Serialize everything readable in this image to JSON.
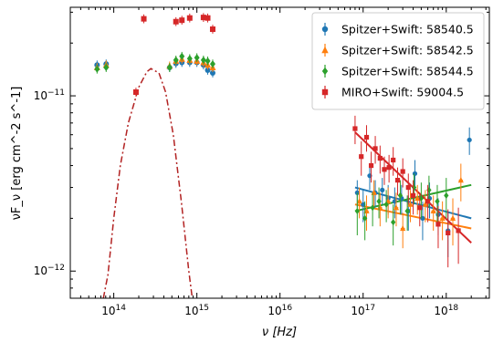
{
  "chart_data": {
    "type": "scatter",
    "xlabel": "ν [Hz]",
    "ylabel": "νF_ν [erg cm^-2 s^-1]",
    "x_scale": "log",
    "y_scale": "log",
    "xlim": [
      30000000000000.0,
      3.3e+18
    ],
    "ylim": [
      7e-13,
      3.2e-11
    ],
    "grid": false,
    "legend_placement": "top-right",
    "x_ticks": [
      {
        "value": 100000000000000.0,
        "base": "10",
        "exp": "14"
      },
      {
        "value": 1000000000000000.0,
        "base": "10",
        "exp": "15"
      },
      {
        "value": 1e+16,
        "base": "10",
        "exp": "16"
      },
      {
        "value": 1e+17,
        "base": "10",
        "exp": "17"
      },
      {
        "value": 1e+18,
        "base": "10",
        "exp": "18"
      }
    ],
    "y_ticks": [
      {
        "value": 1e-12,
        "base": "10",
        "exp": "−12"
      },
      {
        "value": 1e-11,
        "base": "10",
        "exp": "−11"
      }
    ],
    "series": [
      {
        "name": "Spitzer+Swift:  58540.5",
        "color": "#1f77b4",
        "marker": "circle",
        "points": [
          {
            "x": 63000000000000.0,
            "y": 1.5e-11
          },
          {
            "x": 81000000000000.0,
            "y": 1.52e-11
          },
          {
            "x": 470000000000000.0,
            "y": 1.45e-11
          },
          {
            "x": 560000000000000.0,
            "y": 1.53e-11
          },
          {
            "x": 660000000000000.0,
            "y": 1.55e-11
          },
          {
            "x": 820000000000000.0,
            "y": 1.55e-11
          },
          {
            "x": 1000000000000000.0,
            "y": 1.55e-11
          },
          {
            "x": 1200000000000000.0,
            "y": 1.5e-11
          },
          {
            "x": 1350000000000000.0,
            "y": 1.4e-11
          },
          {
            "x": 1550000000000000.0,
            "y": 1.35e-11
          }
        ],
        "xray_points": [
          {
            "x": 8.5e+16,
            "y": 2.8e-12,
            "err": 5e-13
          },
          {
            "x": 1e+17,
            "y": 2.4e-12,
            "err": 5e-13
          },
          {
            "x": 1.2e+17,
            "y": 3.5e-12,
            "err": 6e-13
          },
          {
            "x": 1.4e+17,
            "y": 2.8e-12,
            "err": 5e-13
          },
          {
            "x": 1.7e+17,
            "y": 2.9e-12,
            "err": 5e-13
          },
          {
            "x": 2e+17,
            "y": 2.6e-12,
            "err": 5e-13
          },
          {
            "x": 2.4e+17,
            "y": 2.5e-12,
            "err": 5e-13
          },
          {
            "x": 2.9e+17,
            "y": 2.6e-12,
            "err": 5e-13
          },
          {
            "x": 3.5e+17,
            "y": 2.2e-12,
            "err": 5e-13
          },
          {
            "x": 4.2e+17,
            "y": 3.6e-12,
            "err": 7e-13
          },
          {
            "x": 5.2e+17,
            "y": 2e-12,
            "err": 5e-13
          },
          {
            "x": 6.3e+17,
            "y": 2.6e-12,
            "err": 6e-13
          },
          {
            "x": 8e+17,
            "y": 2.1e-12,
            "err": 5e-13
          },
          {
            "x": 1.05e+18,
            "y": 1.7e-12,
            "err": 5e-13
          },
          {
            "x": 1.9e+18,
            "y": 5.6e-12,
            "err": 1e-12
          }
        ],
        "fit": {
          "x": [
            8e+16,
            2e+18
          ],
          "y": [
            3e-12,
            2e-12
          ]
        }
      },
      {
        "name": "Spitzer+Swift:  58542.5",
        "color": "#ff7f0e",
        "marker": "triangle",
        "points": [
          {
            "x": 63000000000000.0,
            "y": 1.45e-11
          },
          {
            "x": 81000000000000.0,
            "y": 1.5e-11
          },
          {
            "x": 470000000000000.0,
            "y": 1.48e-11
          },
          {
            "x": 560000000000000.0,
            "y": 1.58e-11
          },
          {
            "x": 660000000000000.0,
            "y": 1.62e-11
          },
          {
            "x": 820000000000000.0,
            "y": 1.6e-11
          },
          {
            "x": 1000000000000000.0,
            "y": 1.58e-11
          },
          {
            "x": 1200000000000000.0,
            "y": 1.55e-11
          },
          {
            "x": 1350000000000000.0,
            "y": 1.5e-11
          },
          {
            "x": 1550000000000000.0,
            "y": 1.45e-11
          }
        ],
        "xray_points": [
          {
            "x": 9e+16,
            "y": 2.5e-12,
            "err": 5e-13
          },
          {
            "x": 1.1e+17,
            "y": 2.2e-12,
            "err": 5e-13
          },
          {
            "x": 1.35e+17,
            "y": 2.8e-12,
            "err": 5e-13
          },
          {
            "x": 1.6e+17,
            "y": 2.3e-12,
            "err": 5e-13
          },
          {
            "x": 2e+17,
            "y": 2.5e-12,
            "err": 5e-13
          },
          {
            "x": 2.5e+17,
            "y": 2.3e-12,
            "err": 5e-13
          },
          {
            "x": 3e+17,
            "y": 1.75e-12,
            "err": 4e-13
          },
          {
            "x": 3.7e+17,
            "y": 2.4e-12,
            "err": 5e-13
          },
          {
            "x": 4.5e+17,
            "y": 2.6e-12,
            "err": 5e-13
          },
          {
            "x": 5.6e+17,
            "y": 2.4e-12,
            "err": 5e-13
          },
          {
            "x": 7e+17,
            "y": 2.2e-12,
            "err": 5e-13
          },
          {
            "x": 9e+17,
            "y": 2e-12,
            "err": 5e-13
          },
          {
            "x": 1.2e+18,
            "y": 2e-12,
            "err": 6e-13
          },
          {
            "x": 1.5e+18,
            "y": 3.3e-12,
            "err": 8e-13
          }
        ],
        "fit": {
          "x": [
            8e+16,
            2e+18
          ],
          "y": [
            2.4e-12,
            1.75e-12
          ]
        }
      },
      {
        "name": "Spitzer+Swift:  58544.5",
        "color": "#2ca02c",
        "marker": "diamond",
        "points": [
          {
            "x": 63000000000000.0,
            "y": 1.42e-11
          },
          {
            "x": 81000000000000.0,
            "y": 1.45e-11
          },
          {
            "x": 470000000000000.0,
            "y": 1.45e-11
          },
          {
            "x": 560000000000000.0,
            "y": 1.6e-11
          },
          {
            "x": 660000000000000.0,
            "y": 1.68e-11
          },
          {
            "x": 820000000000000.0,
            "y": 1.63e-11
          },
          {
            "x": 1000000000000000.0,
            "y": 1.65e-11
          },
          {
            "x": 1200000000000000.0,
            "y": 1.6e-11
          },
          {
            "x": 1350000000000000.0,
            "y": 1.58e-11
          },
          {
            "x": 1550000000000000.0,
            "y": 1.52e-11
          }
        ],
        "xray_points": [
          {
            "x": 8.5e+16,
            "y": 2.2e-12,
            "err": 6e-13
          },
          {
            "x": 1.05e+17,
            "y": 2e-12,
            "err": 5e-13
          },
          {
            "x": 1.3e+17,
            "y": 2.3e-12,
            "err": 5e-13
          },
          {
            "x": 1.55e+17,
            "y": 2.5e-12,
            "err": 5e-13
          },
          {
            "x": 1.9e+17,
            "y": 2.4e-12,
            "err": 5e-13
          },
          {
            "x": 2.3e+17,
            "y": 1.9e-12,
            "err": 5e-13
          },
          {
            "x": 2.8e+17,
            "y": 2.7e-12,
            "err": 6e-13
          },
          {
            "x": 3.4e+17,
            "y": 2.2e-12,
            "err": 5e-13
          },
          {
            "x": 4.1e+17,
            "y": 3e-12,
            "err": 6e-13
          },
          {
            "x": 5e+17,
            "y": 2.6e-12,
            "err": 6e-13
          },
          {
            "x": 6.2e+17,
            "y": 2.9e-12,
            "err": 6e-13
          },
          {
            "x": 7.8e+17,
            "y": 2.5e-12,
            "err": 6e-13
          },
          {
            "x": 1e+18,
            "y": 2.7e-12,
            "err": 7e-13
          }
        ],
        "fit": {
          "x": [
            8e+16,
            2e+18
          ],
          "y": [
            2.2e-12,
            3.1e-12
          ]
        }
      },
      {
        "name": "MIRO+Swift:  59004.5",
        "color": "#d62728",
        "marker": "square",
        "points": [
          {
            "x": 185000000000000.0,
            "y": 1.05e-11
          },
          {
            "x": 230000000000000.0,
            "y": 2.75e-11
          },
          {
            "x": 560000000000000.0,
            "y": 2.65e-11
          },
          {
            "x": 660000000000000.0,
            "y": 2.7e-11
          },
          {
            "x": 820000000000000.0,
            "y": 2.78e-11
          },
          {
            "x": 1200000000000000.0,
            "y": 2.8e-11
          },
          {
            "x": 1350000000000000.0,
            "y": 2.78e-11
          },
          {
            "x": 1550000000000000.0,
            "y": 2.4e-11
          }
        ],
        "xray_points": [
          {
            "x": 8e+16,
            "y": 6.5e-12,
            "err": 1.2e-12
          },
          {
            "x": 9.5e+16,
            "y": 4.5e-12,
            "err": 1e-12
          },
          {
            "x": 1.1e+17,
            "y": 5.8e-12,
            "err": 1e-12
          },
          {
            "x": 1.25e+17,
            "y": 4e-12,
            "err": 8e-13
          },
          {
            "x": 1.4e+17,
            "y": 5e-12,
            "err": 9e-13
          },
          {
            "x": 1.6e+17,
            "y": 4.4e-12,
            "err": 8e-13
          },
          {
            "x": 1.8e+17,
            "y": 3.8e-12,
            "err": 7e-13
          },
          {
            "x": 2.05e+17,
            "y": 3.9e-12,
            "err": 7e-13
          },
          {
            "x": 2.3e+17,
            "y": 4.3e-12,
            "err": 8e-13
          },
          {
            "x": 2.6e+17,
            "y": 3.3e-12,
            "err": 6e-13
          },
          {
            "x": 3e+17,
            "y": 3.7e-12,
            "err": 7e-13
          },
          {
            "x": 3.5e+17,
            "y": 3e-12,
            "err": 6e-13
          },
          {
            "x": 4e+17,
            "y": 2.7e-12,
            "err": 6e-13
          },
          {
            "x": 4.8e+17,
            "y": 2.3e-12,
            "err": 5e-13
          },
          {
            "x": 6e+17,
            "y": 2.5e-12,
            "err": 6e-13
          },
          {
            "x": 8e+17,
            "y": 1.85e-12,
            "err": 5e-13
          },
          {
            "x": 1.05e+18,
            "y": 1.65e-12,
            "err": 6e-13
          },
          {
            "x": 1.4e+18,
            "y": 1.7e-12,
            "err": 6e-13
          }
        ],
        "fit": {
          "x": [
            8e+16,
            2e+18
          ],
          "y": [
            6.2e-12,
            1.45e-12
          ]
        },
        "model_curve": [
          {
            "x": 75000000000000.0,
            "y": 7e-13
          },
          {
            "x": 85000000000000.0,
            "y": 9.5e-13
          },
          {
            "x": 100000000000000.0,
            "y": 2e-12
          },
          {
            "x": 120000000000000.0,
            "y": 4e-12
          },
          {
            "x": 150000000000000.0,
            "y": 7e-12
          },
          {
            "x": 200000000000000.0,
            "y": 1.12e-11
          },
          {
            "x": 250000000000000.0,
            "y": 1.37e-11
          },
          {
            "x": 280000000000000.0,
            "y": 1.43e-11
          },
          {
            "x": 350000000000000.0,
            "y": 1.35e-11
          },
          {
            "x": 420000000000000.0,
            "y": 1.05e-11
          },
          {
            "x": 520000000000000.0,
            "y": 6e-12
          },
          {
            "x": 650000000000000.0,
            "y": 2.5e-12
          },
          {
            "x": 800000000000000.0,
            "y": 1e-12
          },
          {
            "x": 880000000000000.0,
            "y": 7e-13
          }
        ]
      }
    ]
  }
}
